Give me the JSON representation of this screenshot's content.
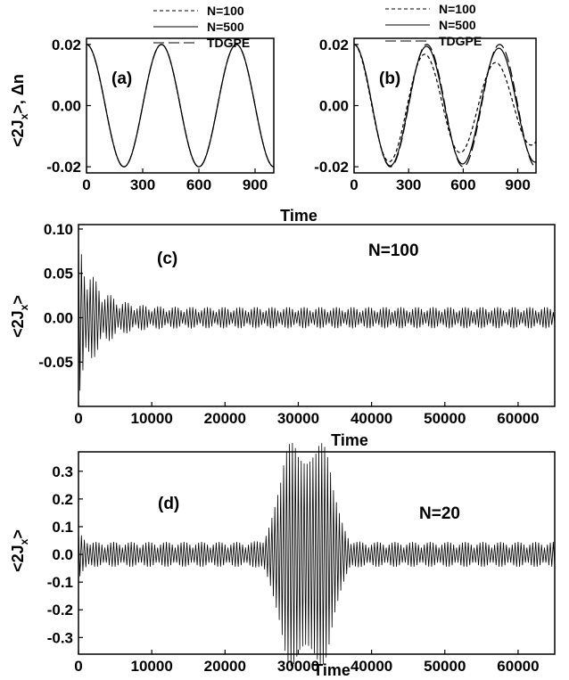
{
  "figure": {
    "x_label": "Time",
    "panel_a_b_y_label": "<2J",
    "panel_a_b_y_label_sub": "x",
    "panel_a_b_y_label_tail": ">, Δn",
    "panel_c_d_y_label": "<2J",
    "panel_c_d_y_label_sub": "x",
    "panel_c_d_y_label_tail": ">"
  },
  "legend": [
    "N=100",
    "N=500",
    "TDGPE"
  ],
  "chart_data": [
    {
      "panel": "(a)",
      "type": "line",
      "xlabel": "",
      "ylabel": "<2Jx>, Δn",
      "xlim": [
        0,
        1000
      ],
      "ylim": [
        -0.022,
        0.022
      ],
      "xticks": [
        "0",
        "300",
        "600",
        "900"
      ],
      "xtick_values": [
        0,
        300,
        600,
        900
      ],
      "yticks": [
        "0.02",
        "0.00",
        "-0.02"
      ],
      "ytick_values": [
        0.02,
        0.0,
        -0.02
      ],
      "series": [
        {
          "name": "N=100",
          "style": "dashed",
          "amplitude": 0.02,
          "period": 400,
          "envelope": "constant"
        },
        {
          "name": "N=500",
          "style": "solid",
          "amplitude": 0.02,
          "period": 400,
          "envelope": "constant"
        },
        {
          "name": "TDGPE",
          "style": "long-dashed",
          "amplitude": 0.02,
          "period": 400,
          "envelope": "constant"
        }
      ]
    },
    {
      "panel": "(b)",
      "type": "line",
      "xlabel": "",
      "ylabel": "",
      "xlim": [
        0,
        1000
      ],
      "ylim": [
        -0.022,
        0.022
      ],
      "xticks": [
        "0",
        "300",
        "600",
        "900"
      ],
      "xtick_values": [
        0,
        300,
        600,
        900
      ],
      "yticks": [
        "0.02",
        "0.00",
        "-0.02"
      ],
      "ytick_values": [
        0.02,
        0.0,
        -0.02
      ],
      "series": [
        {
          "name": "N=100",
          "style": "dashed",
          "amplitude": 0.02,
          "period": 390,
          "decay": 0.00045
        },
        {
          "name": "N=500",
          "style": "solid",
          "amplitude": 0.02,
          "period": 398,
          "decay": 8e-05
        },
        {
          "name": "TDGPE",
          "style": "long-dashed",
          "amplitude": 0.02,
          "period": 400,
          "decay": 0.0
        }
      ]
    },
    {
      "panel": "(c)",
      "type": "line",
      "annotation": "N=100",
      "xlabel": "Time",
      "ylabel": "<2Jx>",
      "xlim": [
        0,
        65000
      ],
      "ylim": [
        -0.1,
        0.105
      ],
      "xticks": [
        "0",
        "10000",
        "20000",
        "30000",
        "40000",
        "50000",
        "60000"
      ],
      "xtick_values": [
        0,
        10000,
        20000,
        30000,
        40000,
        50000,
        60000
      ],
      "yticks": [
        "0.10",
        "0.05",
        "0.00",
        "-0.05"
      ],
      "ytick_values": [
        0.1,
        0.05,
        0.0,
        -0.05
      ],
      "signal": {
        "initial_amplitude": 0.09,
        "steady_amplitude": 0.012,
        "beat_period": 2200,
        "carrier_period": 400
      }
    },
    {
      "panel": "(d)",
      "type": "line",
      "annotation": "N=20",
      "xlabel": "Time",
      "ylabel": "<2Jx>",
      "xlim": [
        0,
        65000
      ],
      "ylim": [
        -0.36,
        0.37
      ],
      "xticks": [
        "0",
        "10000",
        "20000",
        "30000",
        "40000",
        "50000",
        "60000"
      ],
      "xtick_values": [
        0,
        10000,
        20000,
        30000,
        40000,
        50000,
        60000
      ],
      "yticks": [
        "0.3",
        "0.2",
        "0.1",
        "0.0",
        "-0.1",
        "-0.2",
        "-0.3"
      ],
      "ytick_values": [
        0.3,
        0.2,
        0.1,
        0.0,
        -0.1,
        -0.2,
        -0.3
      ],
      "signal": {
        "base_amplitude": 0.045,
        "revival_peaks": [
          29000,
          33200
        ],
        "revival_amplitude": 0.35,
        "carrier_period": 400
      }
    }
  ]
}
